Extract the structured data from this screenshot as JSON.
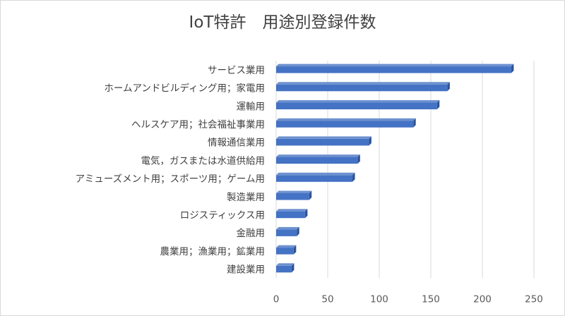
{
  "chart_data": {
    "type": "bar",
    "orientation": "horizontal",
    "title": "IoT特許　用途別登録件数",
    "categories": [
      "サービス業用",
      "ホームアンドビルディング用；家電用",
      "運輸用",
      "ヘルスケア用；社会福祉事業用",
      "情報通信業用",
      "電気，ガスまたは水道供給用",
      "アミューズメント用；スポーツ用；ゲーム用",
      "製造業用",
      "ロジスティックス用",
      "金融用",
      "農業用；漁業用；鉱業用",
      "建設業用"
    ],
    "values": [
      228,
      166,
      156,
      133,
      90,
      79,
      74,
      32,
      28,
      20,
      17,
      15
    ],
    "x_ticks": [
      0,
      50,
      100,
      150,
      200,
      250
    ],
    "xlim": [
      0,
      250
    ],
    "grid": "vertical",
    "legend": "none",
    "colors": {
      "bar_front": "#4472C4",
      "bar_top": "#6D91D0",
      "bar_side": "#2F528F",
      "grid": "#d9d9d9",
      "text": "#404040"
    }
  }
}
